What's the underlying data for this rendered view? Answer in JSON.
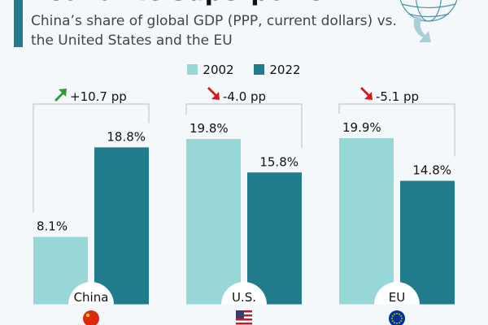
{
  "header": {
    "title": "Economic Superpower",
    "subtitle": "China’s share of global GDP (PPP, current dollars) vs. the United States and the EU"
  },
  "chart_data": {
    "type": "bar",
    "categories": [
      "China",
      "U.S.",
      "EU"
    ],
    "series": [
      {
        "name": "2002",
        "values": [
          8.1,
          19.8,
          19.9
        ],
        "color": "#98d7d7"
      },
      {
        "name": "2022",
        "values": [
          18.8,
          15.8,
          14.8
        ],
        "color": "#217c8c"
      }
    ],
    "value_labels": [
      [
        "8.1%",
        "19.8%",
        "19.9%"
      ],
      [
        "18.8%",
        "15.8%",
        "14.8%"
      ]
    ],
    "changes": [
      {
        "label": "+10.7 pp",
        "direction": "up",
        "color": "#2e9a3a"
      },
      {
        "label": "-4.0 pp",
        "direction": "down",
        "color": "#d7191c"
      },
      {
        "label": "-5.1 pp",
        "direction": "down",
        "color": "#d7191c"
      }
    ],
    "flags": [
      "china-flag",
      "us-flag",
      "eu-flag"
    ],
    "unit": "%",
    "legend_position": "top-center",
    "grid": false
  }
}
